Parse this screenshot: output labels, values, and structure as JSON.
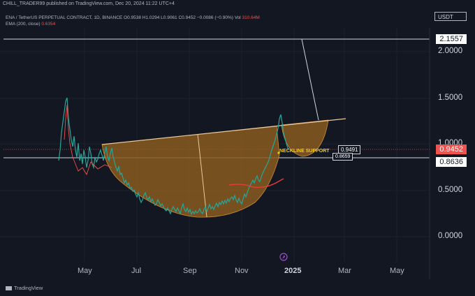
{
  "header": {
    "top_line": "CHILL_TRADER99 published on TradingView.com, Dec 20, 2024 11:22 UTC+4",
    "legend": "ENA / TetherUS PERPETUAL CONTRACT, 1D, BINANCE  O0.9538  H1.0294  L0.9061  C0.9452  −0.0086 (−0.90%)  Vol",
    "legend_vol": "310.64M",
    "ema_label": "EMA (200, close)",
    "ema_value": "0.6354",
    "currency": "USDT"
  },
  "price_tags": {
    "target": "2.1557",
    "current": "0.9452",
    "neckline": "0.8636"
  },
  "y_axis": [
    "2.0000",
    "1.5000",
    "1.0000",
    "0.5000",
    "0.0000"
  ],
  "x_axis": [
    "May",
    "Jul",
    "Sep",
    "Nov",
    "2025",
    "Mar",
    "May"
  ],
  "annotations": {
    "neckline_support": "NECKLINE SUPPORT",
    "box_top": "0.9491",
    "box_bottom": "0.8659"
  },
  "footer": {
    "logo_text": "TradingView"
  },
  "colors": {
    "background": "#131722",
    "cup_fill": "#8a5a1e",
    "trendline": "#e8c9a0",
    "current_price": "#ef5350",
    "neckline": "#d1d4dc",
    "ema": "#ef3b3b",
    "label_yellow": "#f5d000"
  }
}
